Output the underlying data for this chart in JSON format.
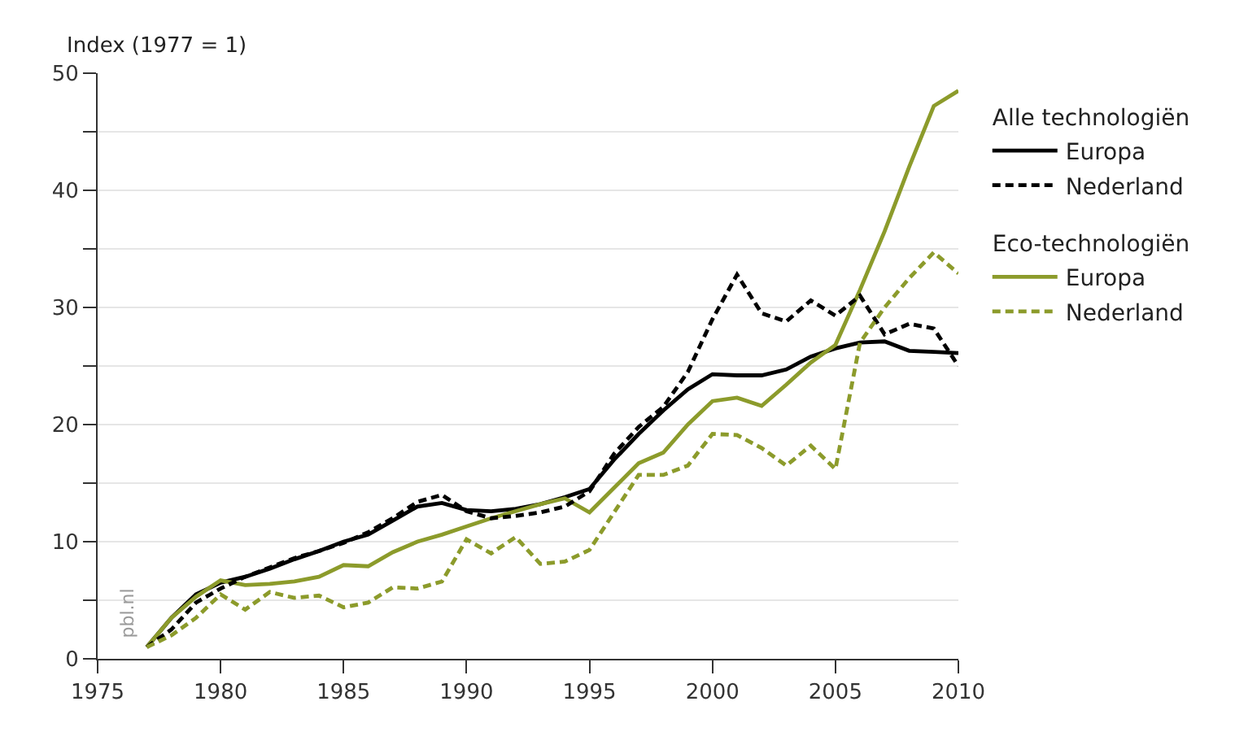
{
  "chart_data": {
    "type": "line",
    "ylabel": "Index (1977 = 1)",
    "x": [
      1977,
      1978,
      1979,
      1980,
      1981,
      1982,
      1983,
      1984,
      1985,
      1986,
      1987,
      1988,
      1989,
      1990,
      1991,
      1992,
      1993,
      1994,
      1995,
      1996,
      1997,
      1998,
      1999,
      2000,
      2001,
      2002,
      2003,
      2004,
      2005,
      2006,
      2007,
      2008,
      2009,
      2010
    ],
    "series": [
      {
        "name": "Europa",
        "color": "#000000",
        "line_style": "solid",
        "values": [
          1,
          3.5,
          5.5,
          6.5,
          7,
          7.7,
          8.5,
          9.2,
          10,
          10.6,
          11.8,
          13,
          13.3,
          12.7,
          12.6,
          12.8,
          13.2,
          13.8,
          14.5,
          17,
          19.2,
          21.2,
          23,
          24.3,
          24.2,
          24.2,
          24.7,
          25.8,
          26.5,
          27,
          27.1,
          26.3,
          26.2,
          26.1
        ]
      },
      {
        "name": "Nederland",
        "color": "#000000",
        "line_style": "dashed",
        "values": [
          1,
          2.5,
          4.8,
          6,
          7,
          7.8,
          8.6,
          9.2,
          9.9,
          10.8,
          12,
          13.4,
          14,
          12.6,
          12,
          12.2,
          12.5,
          13,
          14.3,
          17.5,
          19.8,
          21.5,
          24.5,
          29,
          32.8,
          29.5,
          28.8,
          30.6,
          29.3,
          31,
          27.7,
          28.6,
          28.2,
          25
        ]
      },
      {
        "name": "Europa",
        "color": "#8c9b2b",
        "line_style": "solid",
        "values": [
          1,
          3.5,
          5.3,
          6.7,
          6.3,
          6.4,
          6.6,
          7,
          8,
          7.9,
          9.1,
          10,
          10.6,
          11.3,
          12,
          12.6,
          13.2,
          13.7,
          12.5,
          14.6,
          16.7,
          17.6,
          20,
          22,
          22.3,
          21.6,
          23.4,
          25.3,
          26.8,
          31.5,
          36.5,
          42,
          47.2,
          48.5
        ]
      },
      {
        "name": "Nederland",
        "color": "#8c9b2b",
        "line_style": "dashed",
        "values": [
          1,
          2,
          3.5,
          5.5,
          4.2,
          5.7,
          5.2,
          5.4,
          4.4,
          4.8,
          6.1,
          6,
          6.6,
          10.2,
          9,
          10.4,
          8.1,
          8.3,
          9.3,
          12.5,
          15.7,
          15.7,
          16.5,
          19.2,
          19.1,
          18,
          16.5,
          18.2,
          16.2,
          27,
          30,
          32.5,
          34.7,
          32.9
        ]
      }
    ],
    "xlim": [
      1975,
      2010
    ],
    "xticks": [
      1975,
      1980,
      1985,
      1990,
      1995,
      2000,
      2005,
      2010
    ],
    "ylim": [
      0,
      50
    ],
    "yticks": [
      0,
      {
        "value": 5,
        "label": null
      },
      10,
      {
        "value": 15,
        "label": null
      },
      20,
      {
        "value": 25,
        "label": null
      },
      30,
      {
        "value": 35,
        "label": null
      },
      40,
      {
        "value": 45,
        "label": null
      },
      50
    ],
    "grid": "y",
    "legend": "top right",
    "marker": "none",
    "annotations": [
      "Alle technologiën",
      "Eco-technologiën",
      "pbl.nl"
    ]
  }
}
